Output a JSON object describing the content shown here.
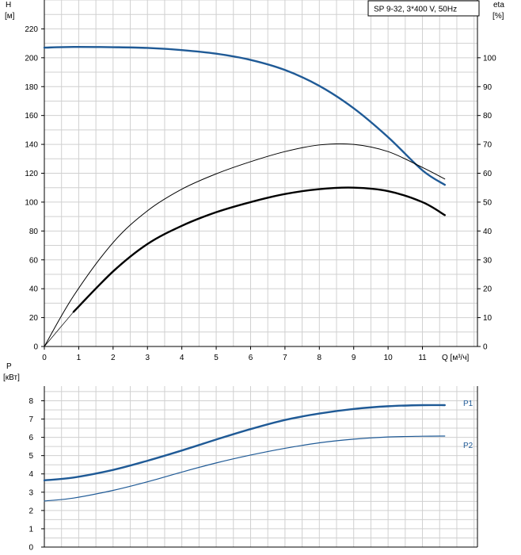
{
  "chart_data": [
    {
      "type": "line",
      "title": "SP 9-32, 3*400 V, 50Hz",
      "ylabel": "H",
      "ylabel_unit": "[м]",
      "y2label": "eta",
      "y2label_unit": "[%]",
      "xlabel": "Q [м³/ч]",
      "xlim": [
        0,
        12.6
      ],
      "ylim": [
        0,
        240
      ],
      "y2lim": [
        0,
        120
      ],
      "x_ticks": [
        0,
        1,
        2,
        3,
        4,
        5,
        6,
        7,
        8,
        9,
        10,
        11
      ],
      "y_ticks": [
        0,
        20,
        40,
        60,
        80,
        100,
        120,
        140,
        160,
        180,
        200,
        220
      ],
      "y2_ticks": [
        0,
        10,
        20,
        30,
        40,
        50,
        60,
        70,
        80,
        90,
        100
      ],
      "grid": true,
      "series": [
        {
          "axis": "left",
          "color": "#1f5a96",
          "width": 2.4,
          "x": [
            0,
            0.85,
            2,
            3,
            4,
            5,
            6,
            7,
            8,
            9,
            10,
            11,
            11.65
          ],
          "y": [
            207,
            207.5,
            207.3,
            206.8,
            205.3,
            202.8,
            198.5,
            191.5,
            180.5,
            165,
            145,
            122,
            112
          ]
        },
        {
          "axis": "left",
          "color": "#1f5a96",
          "width": 1,
          "x": [
            0,
            0.85
          ],
          "y": [
            207,
            207.5
          ]
        },
        {
          "axis": "right",
          "color": "#000000",
          "width": 1,
          "x": [
            0,
            0.85,
            2,
            3,
            4,
            5,
            6,
            7,
            8,
            9,
            10,
            11,
            11.65
          ],
          "y": [
            0,
            17.5,
            36,
            47,
            54.5,
            59.8,
            64,
            67.5,
            69.8,
            70,
            67.5,
            62,
            58
          ]
        },
        {
          "axis": "right",
          "color": "#000000",
          "width": 2.4,
          "x": [
            0.85,
            2,
            3,
            4,
            5,
            6,
            7,
            8,
            9,
            10,
            11,
            11.65
          ],
          "y": [
            12,
            26,
            35.5,
            41.8,
            46.5,
            50,
            52.8,
            54.5,
            55,
            53.8,
            50,
            45.5
          ]
        },
        {
          "axis": "right",
          "color": "#000000",
          "width": 0.7,
          "x": [
            0,
            0.85
          ],
          "y": [
            0,
            12
          ]
        }
      ]
    },
    {
      "type": "line",
      "ylabel": "P",
      "ylabel_unit": "[кВт]",
      "xlim": [
        0,
        12.6
      ],
      "ylim": [
        0,
        8.8
      ],
      "y_ticks": [
        0,
        1,
        2,
        3,
        4,
        5,
        6,
        7,
        8
      ],
      "grid": true,
      "series": [
        {
          "name": "P1",
          "color": "#1f5a96",
          "width": 2.4,
          "x": [
            0,
            0.85,
            2,
            3,
            4,
            5,
            6,
            7,
            8,
            9,
            10,
            11,
            11.65
          ],
          "y": [
            3.65,
            3.8,
            4.22,
            4.72,
            5.28,
            5.88,
            6.45,
            6.95,
            7.3,
            7.55,
            7.7,
            7.76,
            7.76
          ]
        },
        {
          "name": "P1-extension",
          "color": "#1f5a96",
          "width": 1,
          "x": [
            0,
            0.85
          ],
          "y": [
            3.65,
            3.8
          ]
        },
        {
          "name": "P2",
          "color": "#1f5a96",
          "width": 1.2,
          "x": [
            0,
            0.85,
            2,
            3,
            4,
            5,
            6,
            7,
            8,
            9,
            10,
            11,
            11.65
          ],
          "y": [
            2.52,
            2.68,
            3.1,
            3.57,
            4.1,
            4.6,
            5.03,
            5.4,
            5.7,
            5.9,
            6.02,
            6.06,
            6.07
          ]
        }
      ],
      "legend": [
        {
          "label": "P1",
          "color": "#1f5a96"
        },
        {
          "label": "P2",
          "color": "#1f5a96"
        }
      ]
    }
  ]
}
